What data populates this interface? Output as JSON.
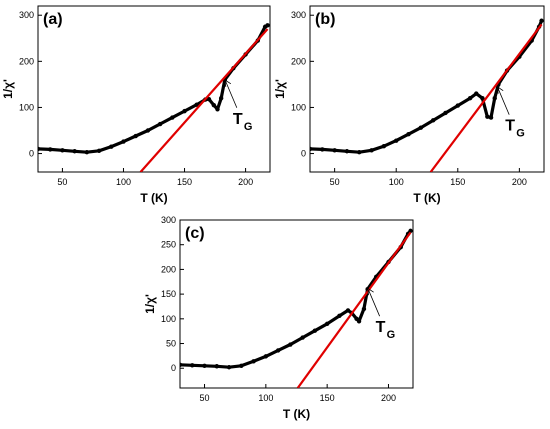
{
  "chart_data": [
    {
      "panel_label": "(a)",
      "type": "scatter",
      "xlabel": "T (K)",
      "ylabel": "1/χ'",
      "xlim": [
        30,
        220
      ],
      "ylim": [
        -40,
        320
      ],
      "xticks": [
        50,
        100,
        150,
        200
      ],
      "yticks": [
        0,
        100,
        200,
        300
      ],
      "annotation": {
        "text": "T",
        "subscript": "G"
      },
      "annotation_at": {
        "x": 183,
        "y": 160
      },
      "series": [
        {
          "color": "#000000",
          "points": [
            [
              30,
              10
            ],
            [
              40,
              9
            ],
            [
              50,
              7
            ],
            [
              60,
              5
            ],
            [
              70,
              3
            ],
            [
              80,
              6
            ],
            [
              90,
              15
            ],
            [
              100,
              26
            ],
            [
              110,
              38
            ],
            [
              120,
              50
            ],
            [
              130,
              64
            ],
            [
              140,
              78
            ],
            [
              150,
              92
            ],
            [
              160,
              106
            ],
            [
              167,
              117
            ],
            [
              170,
              118
            ],
            [
              174,
              105
            ],
            [
              177,
              96
            ],
            [
              180,
              120
            ],
            [
              183,
              160
            ],
            [
              190,
              185
            ],
            [
              200,
              215
            ],
            [
              210,
              245
            ],
            [
              216,
              275
            ],
            [
              218,
              278
            ]
          ]
        },
        {
          "color": "#e00000",
          "points": [
            [
              114,
              -40
            ],
            [
              218,
              270
            ]
          ]
        }
      ]
    },
    {
      "panel_label": "(b)",
      "type": "scatter",
      "xlabel": "T (K)",
      "ylabel": "1/χ'",
      "xlim": [
        30,
        220
      ],
      "ylim": [
        -40,
        320
      ],
      "xticks": [
        50,
        100,
        150,
        200
      ],
      "yticks": [
        0,
        100,
        200,
        300
      ],
      "annotation": {
        "text": "T",
        "subscript": "G"
      },
      "annotation_at": {
        "x": 182,
        "y": 145
      },
      "series": [
        {
          "color": "#000000",
          "points": [
            [
              30,
              10
            ],
            [
              40,
              9
            ],
            [
              50,
              7
            ],
            [
              60,
              5
            ],
            [
              70,
              3
            ],
            [
              80,
              7
            ],
            [
              90,
              16
            ],
            [
              100,
              28
            ],
            [
              110,
              42
            ],
            [
              120,
              56
            ],
            [
              130,
              72
            ],
            [
              140,
              88
            ],
            [
              150,
              104
            ],
            [
              160,
              120
            ],
            [
              165,
              130
            ],
            [
              170,
              120
            ],
            [
              174,
              80
            ],
            [
              177,
              78
            ],
            [
              180,
              120
            ],
            [
              183,
              150
            ],
            [
              190,
              180
            ],
            [
              200,
              210
            ],
            [
              210,
              245
            ],
            [
              216,
              275
            ],
            [
              218,
              288
            ]
          ]
        },
        {
          "color": "#e00000",
          "points": [
            [
              128,
              -40
            ],
            [
              218,
              280
            ]
          ]
        }
      ]
    },
    {
      "panel_label": "(c)",
      "type": "scatter",
      "xlabel": "T (K)",
      "ylabel": "1/χ'",
      "xlim": [
        30,
        220
      ],
      "ylim": [
        -40,
        300
      ],
      "xticks": [
        50,
        100,
        150,
        200
      ],
      "yticks": [
        0,
        50,
        100,
        150,
        200,
        250,
        300
      ],
      "annotation": {
        "text": "T",
        "subscript": "G"
      },
      "annotation_at": {
        "x": 183,
        "y": 162
      },
      "series": [
        {
          "color": "#000000",
          "points": [
            [
              30,
              7
            ],
            [
              40,
              6
            ],
            [
              50,
              5
            ],
            [
              60,
              4
            ],
            [
              70,
              2
            ],
            [
              80,
              5
            ],
            [
              90,
              14
            ],
            [
              100,
              24
            ],
            [
              110,
              36
            ],
            [
              120,
              48
            ],
            [
              130,
              62
            ],
            [
              140,
              76
            ],
            [
              150,
              90
            ],
            [
              160,
              106
            ],
            [
              167,
              117
            ],
            [
              170,
              112
            ],
            [
              174,
              100
            ],
            [
              176,
              95
            ],
            [
              180,
              120
            ],
            [
              183,
              160
            ],
            [
              190,
              185
            ],
            [
              200,
              215
            ],
            [
              210,
              245
            ],
            [
              216,
              272
            ],
            [
              218,
              278
            ]
          ]
        },
        {
          "color": "#e00000",
          "points": [
            [
              126,
              -40
            ],
            [
              218,
              275
            ]
          ]
        }
      ]
    }
  ]
}
